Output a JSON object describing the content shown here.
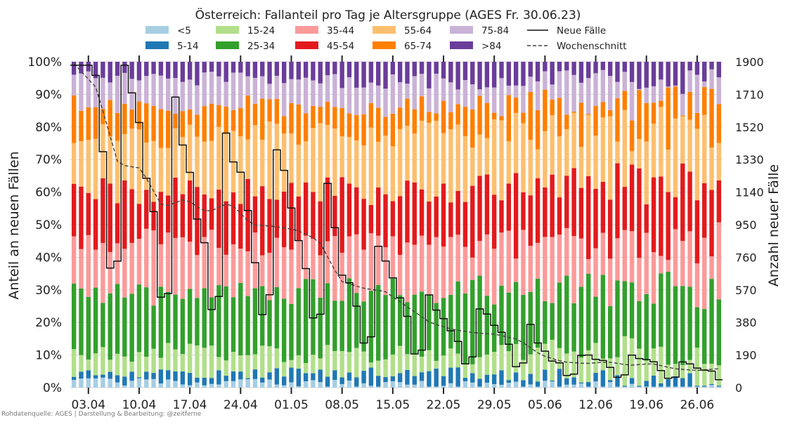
{
  "chart_data": {
    "type": "bar",
    "title": "Österreich: Fallanteil pro Tag je Altersgruppe (AGES Fr. 30.06.23)",
    "ylabel": "Anteil an neuen Fällen",
    "y2label": "Anzahl neuer Fälle",
    "credit": "Rohdatenquelle: AGES | Darstellung & Bearbeitung: @zeitferne",
    "ylim": [
      0,
      100
    ],
    "y2lim": [
      0,
      1900
    ],
    "y_ticks": [
      "0%",
      "10%",
      "20%",
      "30%",
      "40%",
      "50%",
      "60%",
      "70%",
      "80%",
      "90%",
      "100%"
    ],
    "y2_ticks": [
      "0",
      "190",
      "380",
      "570",
      "760",
      "950",
      "1140",
      "1330",
      "1520",
      "1710",
      "1900"
    ],
    "x_ticks": [
      "03.04",
      "10.04",
      "17.04",
      "24.04",
      "01.05",
      "08.05",
      "15.05",
      "22.05",
      "29.05",
      "05.06",
      "12.06",
      "19.06",
      "26.06"
    ],
    "x_tick_day_index": [
      2,
      9,
      16,
      23,
      30,
      37,
      44,
      51,
      58,
      65,
      72,
      79,
      86
    ],
    "day_count": 90,
    "grid": true,
    "legend_placement": "top",
    "age_groups": [
      "<5",
      "5-14",
      "15-24",
      "25-34",
      "35-44",
      "45-54",
      "55-64",
      "65-74",
      "75-84",
      ">84"
    ],
    "colors": [
      "#a6cee3",
      "#1f78b4",
      "#b2df8a",
      "#33a02c",
      "#fb9a99",
      "#e31a1c",
      "#fdbf6f",
      "#ff7f00",
      "#cab2d6",
      "#6a3d9a"
    ],
    "series_lines": [
      {
        "name": "Neue Fälle",
        "style": "solid",
        "color": "#111111"
      },
      {
        "name": "Wochenschnitt",
        "style": "dashed",
        "color": "#444444"
      }
    ],
    "cumulative_approx": {
      "lt5": [
        2,
        1,
        0
      ],
      "to14": [
        4,
        5,
        2
      ],
      "to24": [
        11,
        10,
        12
      ],
      "to34": [
        28,
        30,
        30
      ],
      "to44": [
        45,
        44,
        45
      ],
      "to54": [
        61,
        60,
        64
      ],
      "to64": [
        78,
        78,
        80
      ],
      "to74": [
        87,
        86,
        88
      ],
      "to84": [
        95,
        94,
        94
      ]
    },
    "new_cases_weekly_mean": [
      1890,
      1750,
      1300,
      1280,
      1050,
      1100,
      1020,
      1080,
      950,
      940,
      920,
      860,
      620,
      580,
      560,
      470,
      380,
      340,
      320,
      310,
      280,
      190,
      150,
      140,
      150,
      130,
      140,
      110,
      100,
      110
    ]
  }
}
